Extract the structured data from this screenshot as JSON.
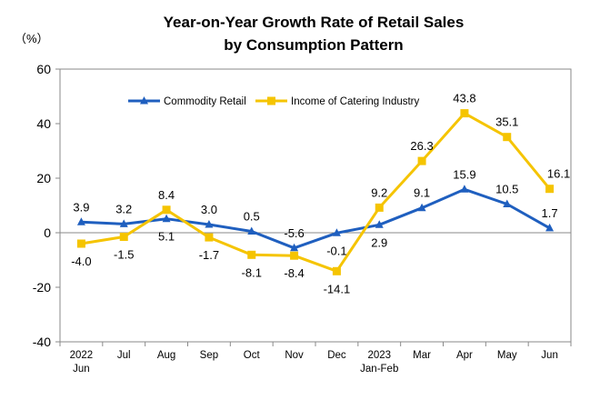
{
  "chart_data": {
    "type": "line",
    "title_line1": "Year-on-Year Growth Rate of Retail Sales",
    "title_line2": "by Consumption Pattern",
    "unit_label": "（%）",
    "ylim": [
      -40,
      60
    ],
    "y_ticks": [
      60,
      40,
      20,
      0,
      -20,
      -40
    ],
    "grid": false,
    "legend_position": "top",
    "categories": [
      [
        "2022",
        "Jun"
      ],
      [
        "Jul"
      ],
      [
        "Aug"
      ],
      [
        "Sep"
      ],
      [
        "Oct"
      ],
      [
        "Nov"
      ],
      [
        "Dec"
      ],
      [
        "2023",
        "Jan-Feb"
      ],
      [
        "Mar"
      ],
      [
        "Apr"
      ],
      [
        "May"
      ],
      [
        "Jun"
      ]
    ],
    "series": [
      {
        "name": "Commodity Retail",
        "color": "#1f5fbf",
        "marker": "triangle",
        "values": [
          3.9,
          3.2,
          5.1,
          3.0,
          0.5,
          -5.6,
          -0.1,
          2.9,
          9.1,
          15.9,
          10.5,
          1.7
        ],
        "labels": [
          "3.9",
          "3.2",
          "5.1",
          "3.0",
          "0.5",
          "-5.6",
          "-0.1",
          "2.9",
          "9.1",
          "15.9",
          "10.5",
          "1.7"
        ]
      },
      {
        "name": "Income of Catering Industry",
        "color": "#f5c400",
        "marker": "square",
        "values": [
          -4.0,
          -1.5,
          8.4,
          -1.7,
          -8.1,
          -8.4,
          -14.1,
          9.2,
          26.3,
          43.8,
          35.1,
          16.1
        ],
        "labels": [
          "-4.0",
          "-1.5",
          "8.4",
          "-1.7",
          "-8.1",
          "-8.4",
          "-14.1",
          "9.2",
          "26.3",
          "43.8",
          "35.1",
          "16.1"
        ]
      }
    ]
  }
}
